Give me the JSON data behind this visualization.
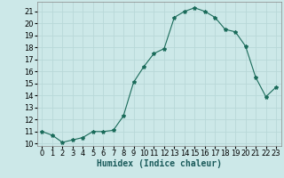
{
  "x": [
    0,
    1,
    2,
    3,
    4,
    5,
    6,
    7,
    8,
    9,
    10,
    11,
    12,
    13,
    14,
    15,
    16,
    17,
    18,
    19,
    20,
    21,
    22,
    23
  ],
  "y": [
    11.0,
    10.7,
    10.1,
    10.3,
    10.5,
    11.0,
    11.0,
    11.1,
    12.3,
    15.1,
    16.4,
    17.5,
    17.9,
    20.5,
    21.0,
    21.3,
    21.0,
    20.5,
    19.5,
    19.3,
    18.1,
    15.5,
    13.9,
    14.7
  ],
  "xlabel": "Humidex (Indice chaleur)",
  "xlim": [
    -0.5,
    23.5
  ],
  "ylim": [
    9.8,
    21.8
  ],
  "yticks": [
    10,
    11,
    12,
    13,
    14,
    15,
    16,
    17,
    18,
    19,
    20,
    21
  ],
  "xticks": [
    0,
    1,
    2,
    3,
    4,
    5,
    6,
    7,
    8,
    9,
    10,
    11,
    12,
    13,
    14,
    15,
    16,
    17,
    18,
    19,
    20,
    21,
    22,
    23
  ],
  "line_color": "#1a6b5a",
  "marker": "*",
  "marker_size": 3,
  "bg_color": "#cce8e8",
  "grid_color": "#b8d8d8",
  "label_fontsize": 7,
  "tick_fontsize": 6
}
